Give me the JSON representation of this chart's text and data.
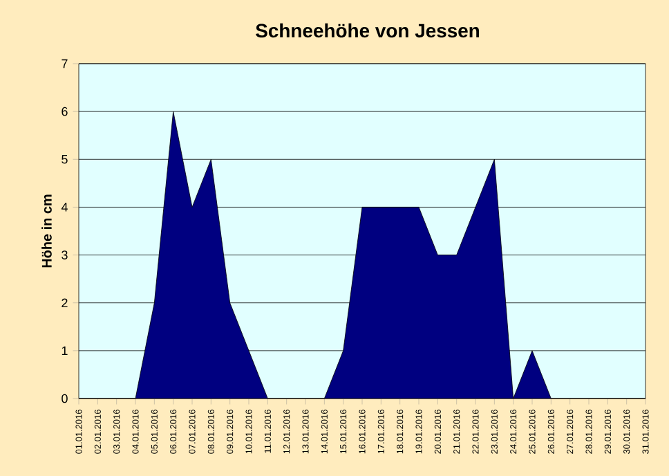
{
  "chart_data": {
    "type": "area",
    "title": "Schneehöhe von Jessen",
    "ylabel": "Höhe in cm",
    "categories": [
      "01.01.2016",
      "02.01.2016",
      "03.01.2016",
      "04.01.2016",
      "05.01.2016",
      "06.01.2016",
      "07.01.2016",
      "08.01.2016",
      "09.01.2016",
      "10.01.2016",
      "11.01.2016",
      "12.01.2016",
      "13.01.2016",
      "14.01.2016",
      "15.01.2016",
      "16.01.2016",
      "17.01.2016",
      "18.01.2016",
      "19.01.2016",
      "20.01.2016",
      "21.01.2016",
      "22.01.2016",
      "23.01.2016",
      "24.01.2016",
      "25.01.2016",
      "26.01.2016",
      "27.01.2016",
      "28.01.2016",
      "29.01.2016",
      "30.01.2016",
      "31.01.2016"
    ],
    "values": [
      0,
      0,
      0,
      0,
      2,
      6,
      4,
      5,
      2,
      1,
      0,
      0,
      0,
      0,
      1,
      4,
      4,
      4,
      4,
      3,
      3,
      4,
      5,
      0,
      1,
      0,
      0,
      0,
      0,
      0,
      0
    ],
    "color": "#000080",
    "ylim": [
      0,
      7
    ],
    "yticks": [
      0,
      1,
      2,
      3,
      4,
      5,
      6,
      7
    ],
    "grid": "y"
  }
}
